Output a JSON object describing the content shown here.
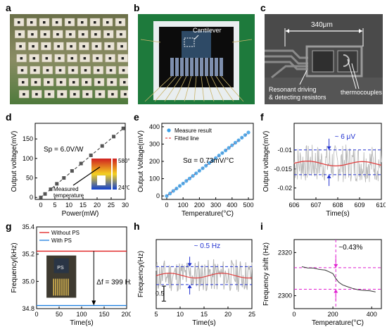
{
  "panels": {
    "a": {
      "letter": "a"
    },
    "b": {
      "letter": "b",
      "label": "Cantilever"
    },
    "c": {
      "letter": "c",
      "scale_label": "340μm",
      "label_resistors_1": "Resonant driving",
      "label_resistors_2": "& detecting resistors",
      "label_thermocouples": "thermocouples"
    },
    "d": {
      "letter": "d"
    },
    "e": {
      "letter": "e"
    },
    "f": {
      "letter": "f"
    },
    "g": {
      "letter": "g"
    },
    "h": {
      "letter": "h"
    },
    "i": {
      "letter": "i"
    }
  },
  "chart_data": [
    {
      "id": "d",
      "type": "scatter",
      "xlabel": "Power(mW)",
      "ylabel": "Output voltage(mV)",
      "xlim": [
        -2,
        30
      ],
      "ylim": [
        -5,
        190
      ],
      "xticks": [
        0,
        5,
        10,
        15,
        20,
        25,
        30
      ],
      "yticks": [
        0,
        50,
        100,
        150
      ],
      "annotation": "S<sub>p</sub> = 6.0V/W",
      "annotation_plain": "Sp = 6.0V/W",
      "inset_max": "580°C",
      "inset_min": "24°C",
      "inset_note_1": "Measured",
      "inset_note_2": "temperature",
      "series": [
        {
          "x": [
            0,
            1.5,
            3.5,
            5.7,
            8.2,
            11.1,
            14.3,
            17.8,
            21.8,
            25.9,
            29.3
          ],
          "y": [
            0,
            9,
            21,
            35,
            50,
            68,
            87,
            108,
            132,
            156,
            177
          ]
        }
      ],
      "fit": {
        "x": [
          0,
          29.5
        ],
        "y": [
          0,
          178
        ]
      }
    },
    {
      "id": "e",
      "type": "scatter",
      "xlabel": "Temperature(°C)",
      "ylabel": "Output Voltage(mV)",
      "xlim": [
        -30,
        530
      ],
      "ylim": [
        -20,
        420
      ],
      "xticks": [
        0,
        100,
        200,
        300,
        400,
        500
      ],
      "yticks": [
        0,
        100,
        200,
        300,
        400
      ],
      "legend": [
        "Measure result",
        "Fitted line"
      ],
      "annotation": "S<sub>α</sub> = 0.73mV/°C",
      "series": [
        {
          "name": "Measure result",
          "x": [
            0,
            20,
            40,
            60,
            80,
            100,
            120,
            140,
            160,
            180,
            200,
            220,
            240,
            260,
            280,
            300,
            320,
            340,
            360,
            380,
            400,
            420,
            440,
            460,
            480,
            500
          ],
          "y": [
            0,
            14,
            29,
            43,
            58,
            72,
            87,
            101,
            116,
            131,
            146,
            160,
            175,
            190,
            204,
            219,
            234,
            248,
            263,
            278,
            293,
            308,
            322,
            337,
            352,
            367
          ]
        }
      ],
      "fit": {
        "x": [
          0,
          500
        ],
        "y": [
          0,
          365
        ]
      }
    },
    {
      "id": "f",
      "type": "line",
      "xlabel": "Time(s)",
      "ylabel": "Output voltage(mV)",
      "xlim": [
        606,
        610
      ],
      "ylim": [
        -0.023,
        -0.003
      ],
      "xticks": [
        606,
        607,
        608,
        609,
        610
      ],
      "yticks": [
        -0.01,
        -0.015,
        -0.02
      ],
      "ytick_labels": [
        "-0.01",
        "-0.015",
        "-0.02"
      ],
      "annotation": "~ 6 μV",
      "mean": -0.0135,
      "band": [
        -0.01,
        -0.0165
      ]
    },
    {
      "id": "g",
      "type": "line",
      "xlabel": "Time(s)",
      "ylabel": "Frequency(kHz)",
      "xlim": [
        0,
        200
      ],
      "ylim": [
        34.8,
        35.4
      ],
      "xticks": [
        0,
        50,
        100,
        150,
        200
      ],
      "yticks": [
        34.8,
        35.0,
        35.2,
        35.4
      ],
      "ytick_labels": [
        "34.8",
        "35.0",
        "35.2",
        "35.4"
      ],
      "legend": [
        "Without PS",
        "With PS"
      ],
      "annotation": "Δf = 399 Hz",
      "inset_text": "PS",
      "series": [
        {
          "name": "Without PS",
          "value": 35.222
        },
        {
          "name": "With PS",
          "value": 34.823
        }
      ]
    },
    {
      "id": "h",
      "type": "line",
      "xlabel": "Time(s)",
      "ylabel": "Frequency(Hz)",
      "xlim": [
        5,
        25
      ],
      "ylim": [
        -1.1,
        1.2
      ],
      "xticks": [
        5,
        10,
        15,
        20,
        25
      ],
      "annotation": "~ 0.5 Hz",
      "scale_bar": "0.5",
      "band": [
        0.3,
        -0.3
      ]
    },
    {
      "id": "i",
      "type": "line",
      "xlabel": "Temperature(°C)",
      "ylabel": "Frequency shift (Hz)",
      "xlim": [
        0,
        450
      ],
      "ylim": [
        2294,
        2326
      ],
      "xticks": [
        0,
        200,
        400
      ],
      "yticks": [
        2300,
        2320
      ],
      "annotation": "~0.43%",
      "vline": 215,
      "band": [
        2313,
        2303
      ],
      "series": [
        {
          "x": [
            40,
            70,
            100,
            130,
            160,
            180,
            200,
            215,
            230,
            250,
            270,
            300,
            330,
            360,
            390,
            420
          ],
          "y": [
            2313.5,
            2313.0,
            2312.6,
            2312.2,
            2311.8,
            2311.2,
            2310.0,
            2308.0,
            2306.3,
            2305.0,
            2304.1,
            2303.3,
            2302.8,
            2302.4,
            2302.2,
            2302.0
          ]
        }
      ]
    }
  ]
}
